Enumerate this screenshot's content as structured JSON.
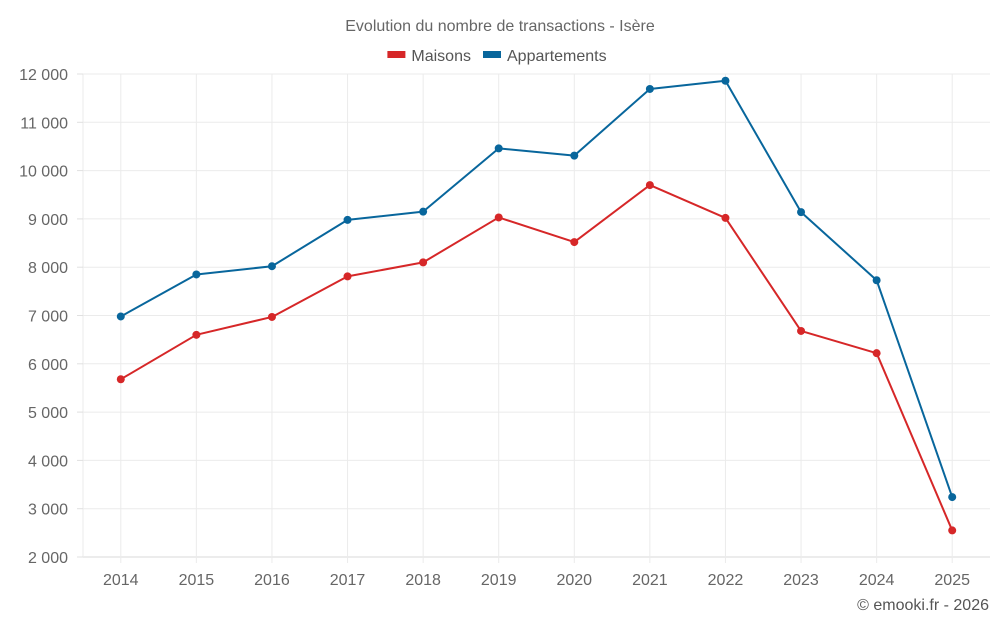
{
  "chart_data": {
    "type": "line",
    "title": "Evolution du nombre de transactions - Isère",
    "xlabel": "",
    "ylabel": "",
    "x": [
      "2014",
      "2015",
      "2016",
      "2017",
      "2018",
      "2019",
      "2020",
      "2021",
      "2022",
      "2023",
      "2024",
      "2025"
    ],
    "series": [
      {
        "name": "Maisons",
        "color": "#d62728",
        "values": [
          5680,
          6600,
          6970,
          7810,
          8100,
          9030,
          8520,
          9700,
          9020,
          6680,
          6220,
          2550
        ]
      },
      {
        "name": "Appartements",
        "color": "#08669c",
        "values": [
          6980,
          7850,
          8020,
          8980,
          9150,
          10460,
          10310,
          11690,
          11860,
          9140,
          7730,
          3240
        ]
      }
    ],
    "ylim": [
      2000,
      12000
    ],
    "yticks": [
      2000,
      3000,
      4000,
      5000,
      6000,
      7000,
      8000,
      9000,
      10000,
      11000,
      12000
    ],
    "ytick_labels": [
      "2 000",
      "3 000",
      "4 000",
      "5 000",
      "6 000",
      "7 000",
      "8 000",
      "9 000",
      "10 000",
      "11 000",
      "12 000"
    ],
    "grid": true,
    "legend_position": "top-center"
  },
  "credit": "© emooki.fr - 2026"
}
